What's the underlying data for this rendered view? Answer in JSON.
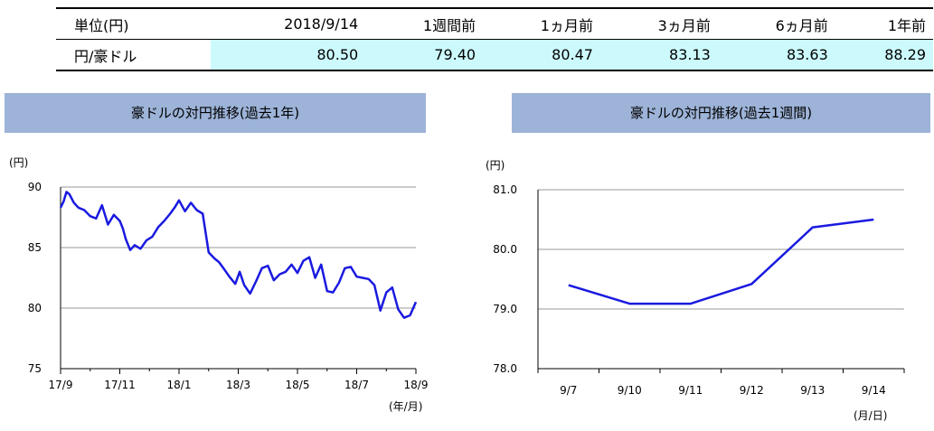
{
  "table": {
    "headers": [
      "単位(円)",
      "2018/9/14",
      "1週間前",
      "1ヵ月前",
      "3ヵ月前",
      "6ヵ月前",
      "1年前"
    ],
    "row_label": "円/豪ドル",
    "values": [
      "80.50",
      "79.40",
      "80.47",
      "83.13",
      "83.63",
      "88.29"
    ],
    "highlight_color": "#ccfafc"
  },
  "chart_data": [
    {
      "type": "line",
      "title": "豪ドルの対円推移(過去1年)",
      "ylabel": "(円)",
      "xlabel": "(年/月)",
      "yticks": [
        75,
        80,
        85,
        90
      ],
      "ylim": [
        75,
        90
      ],
      "xticks": [
        "17/9",
        "17/11",
        "18/1",
        "18/3",
        "18/5",
        "18/7",
        "18/9"
      ],
      "xlim": [
        0,
        12
      ],
      "color": "#1a1ae0",
      "grid": true,
      "series": [
        {
          "x": [
            0,
            0.1,
            0.2,
            0.3,
            0.45,
            0.6,
            0.8,
            1.0,
            1.2,
            1.4,
            1.6,
            1.8,
            2.0,
            2.1,
            2.2,
            2.35,
            2.5,
            2.7,
            2.9,
            3.1,
            3.3,
            3.5,
            3.7,
            3.85,
            4.0,
            4.2,
            4.4,
            4.6,
            4.8,
            5.0,
            5.2,
            5.35,
            5.5,
            5.7,
            5.9,
            6.05,
            6.2,
            6.4,
            6.6,
            6.8,
            7.0,
            7.2,
            7.4,
            7.6,
            7.8,
            8.0,
            8.2,
            8.4,
            8.6,
            8.8,
            9.0,
            9.2,
            9.4,
            9.6,
            9.8,
            10.0,
            10.2,
            10.4,
            10.6,
            10.8,
            11.0,
            11.2,
            11.4,
            11.6,
            11.8,
            12.0
          ],
          "y": [
            88.3,
            88.8,
            89.6,
            89.4,
            88.7,
            88.3,
            88.1,
            87.6,
            87.4,
            88.5,
            86.9,
            87.7,
            87.2,
            86.6,
            85.7,
            84.8,
            85.2,
            84.9,
            85.6,
            85.9,
            86.7,
            87.2,
            87.8,
            88.3,
            88.9,
            88.0,
            88.7,
            88.1,
            87.8,
            84.6,
            84.1,
            83.8,
            83.3,
            82.6,
            82.0,
            83.0,
            81.9,
            81.2,
            82.2,
            83.3,
            83.5,
            82.3,
            82.8,
            83.0,
            83.6,
            82.9,
            83.9,
            84.2,
            82.5,
            83.6,
            81.4,
            81.3,
            82.1,
            83.3,
            83.4,
            82.6,
            82.5,
            82.4,
            81.9,
            79.8,
            81.3,
            81.7,
            79.9,
            79.2,
            79.4,
            80.5
          ]
        }
      ]
    },
    {
      "type": "line",
      "title": "豪ドルの対円推移(過去1週間)",
      "ylabel": "(円)",
      "xlabel": "(月/日)",
      "yticks": [
        "78.0",
        "79.0",
        "80.0",
        "81.0"
      ],
      "ylim": [
        78.0,
        81.0
      ],
      "categories": [
        "9/7",
        "9/10",
        "9/11",
        "9/12",
        "9/13",
        "9/14"
      ],
      "color": "#1a1ae0",
      "grid": true,
      "series": [
        {
          "values": [
            79.4,
            79.09,
            79.09,
            79.42,
            80.37,
            80.5
          ]
        }
      ]
    }
  ]
}
